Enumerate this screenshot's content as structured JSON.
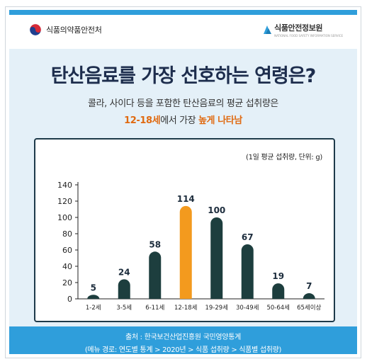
{
  "header": {
    "org_left": "식품의약품안전처",
    "org_right": "식품안전정보원",
    "org_right_sub": "NATIONAL FOOD SAFETY INFORMATION SERVICE"
  },
  "headline": "탄산음료를 가장 선호하는 연령은?",
  "subtitle_line1": "콜라, 사이다 등을 포함한 탄산음료의 평균 섭취량은",
  "subtitle_line2": {
    "age": "12-18세",
    "mid": "에서 가장 ",
    "emphasis": "높게 나타남"
  },
  "chart_data": {
    "type": "bar",
    "unit_note": "(1일 평균 섭취량, 단위: g)",
    "categories": [
      "1-2세",
      "3-5세",
      "6-11세",
      "12-18세",
      "19-29세",
      "30-49세",
      "50-64세",
      "65세이상"
    ],
    "values": [
      5,
      24,
      58,
      114,
      100,
      67,
      19,
      7
    ],
    "highlight_index": 3,
    "ylim": [
      0,
      140
    ],
    "yticks": [
      0,
      20,
      40,
      60,
      80,
      100,
      120,
      140
    ],
    "grid": false,
    "bar_color": "#1d3e3e",
    "highlight_color": "#f39a1e"
  },
  "footer": {
    "source": "출처 : 한국보건산업진흥원 국민영양통계",
    "menu_path": "(메뉴 경로: 연도별 통계 > 2020년 > 식품 섭취량 > 식품별 섭취량)"
  }
}
